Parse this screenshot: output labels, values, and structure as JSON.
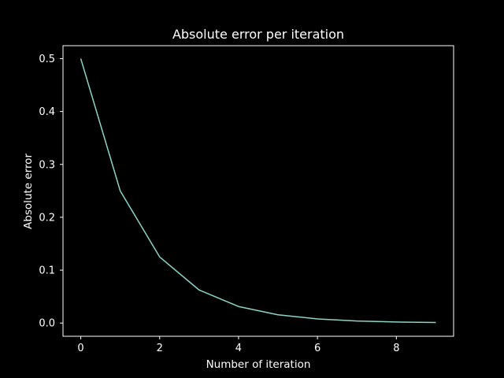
{
  "chart_data": {
    "type": "line",
    "title": "Absolute error per iteration",
    "xlabel": "Number of iteration",
    "ylabel": "Absolute error",
    "xlim": [
      -0.45,
      9.45
    ],
    "ylim": [
      -0.025,
      0.5245
    ],
    "x_ticks": [
      0,
      2,
      4,
      6,
      8
    ],
    "y_ticks": [
      0.0,
      0.1,
      0.2,
      0.3,
      0.4,
      0.5
    ],
    "x_tick_labels": [
      "0",
      "2",
      "4",
      "6",
      "8"
    ],
    "y_tick_labels": [
      "0.0",
      "0.1",
      "0.2",
      "0.3",
      "0.4",
      "0.5"
    ],
    "grid": false,
    "legend": "none",
    "colors": {
      "background": "#000000",
      "axes": "#ffffff",
      "line": "#8dd3c7",
      "text": "#ffffff"
    },
    "series": [
      {
        "x": [
          0,
          1,
          2,
          3,
          4,
          5,
          6,
          7,
          8,
          9
        ],
        "values": [
          0.5,
          0.25,
          0.125,
          0.0625,
          0.03125,
          0.015625,
          0.0078125,
          0.00390625,
          0.001953125,
          0.0009765625
        ]
      }
    ]
  }
}
